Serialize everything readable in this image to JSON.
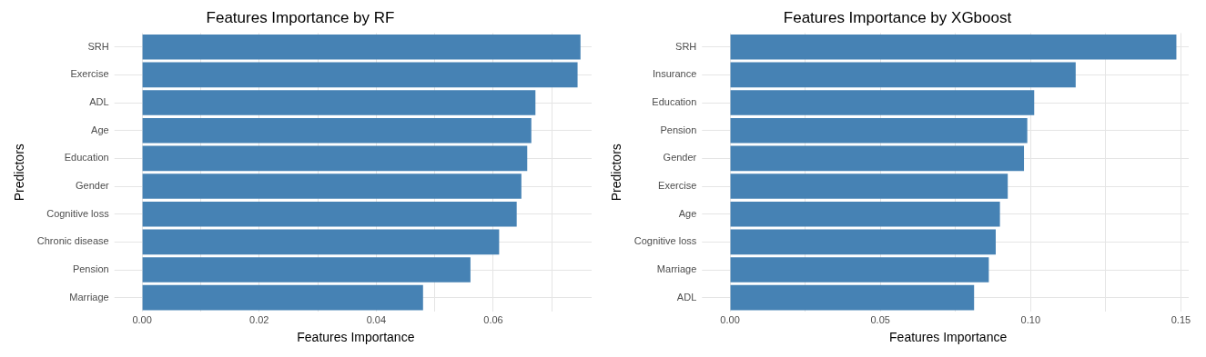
{
  "chart_data": [
    {
      "type": "bar",
      "orientation": "horizontal",
      "title": "Features Importance by RF",
      "xlabel": "Features Importance",
      "ylabel": "Predictors",
      "categories": [
        "SRH",
        "Exercise",
        "ADL",
        "Age",
        "Education",
        "Gender",
        "Cognitive loss",
        "Chronic disease",
        "Pension",
        "Marriage"
      ],
      "values": [
        0.0749,
        0.0744,
        0.0672,
        0.0665,
        0.0658,
        0.0648,
        0.064,
        0.061,
        0.0561,
        0.048
      ],
      "color": "#4682b4",
      "xlim": [
        -0.0038,
        0.0768
      ],
      "xticks": [
        {
          "value": 0,
          "label": "0.00"
        },
        {
          "value": 0.01,
          "label": null
        },
        {
          "value": 0.02,
          "label": "0.02"
        },
        {
          "value": 0.03,
          "label": null
        },
        {
          "value": 0.04,
          "label": "0.04"
        },
        {
          "value": 0.05,
          "label": null
        },
        {
          "value": 0.06,
          "label": "0.06"
        },
        {
          "value": 0.07,
          "label": null
        }
      ],
      "grid": true
    },
    {
      "type": "bar",
      "orientation": "horizontal",
      "title": "Features Importance by XGboost",
      "xlabel": "Features Importance",
      "ylabel": "Predictors",
      "categories": [
        "SRH",
        "Insurance",
        "Education",
        "Pension",
        "Gender",
        "Exercise",
        "Age",
        "Cognitive loss",
        "Marriage",
        "ADL"
      ],
      "values": [
        0.1485,
        0.115,
        0.1012,
        0.0989,
        0.0978,
        0.0924,
        0.0898,
        0.0884,
        0.0861,
        0.0812
      ],
      "color": "#4682b4",
      "xlim": [
        -0.0075,
        0.1526
      ],
      "xticks": [
        {
          "value": 0,
          "label": "0.00"
        },
        {
          "value": 0.025,
          "label": null
        },
        {
          "value": 0.05,
          "label": "0.05"
        },
        {
          "value": 0.075,
          "label": null
        },
        {
          "value": 0.1,
          "label": "0.10"
        },
        {
          "value": 0.125,
          "label": null
        },
        {
          "value": 0.15,
          "label": "0.15"
        }
      ],
      "grid": true
    }
  ]
}
